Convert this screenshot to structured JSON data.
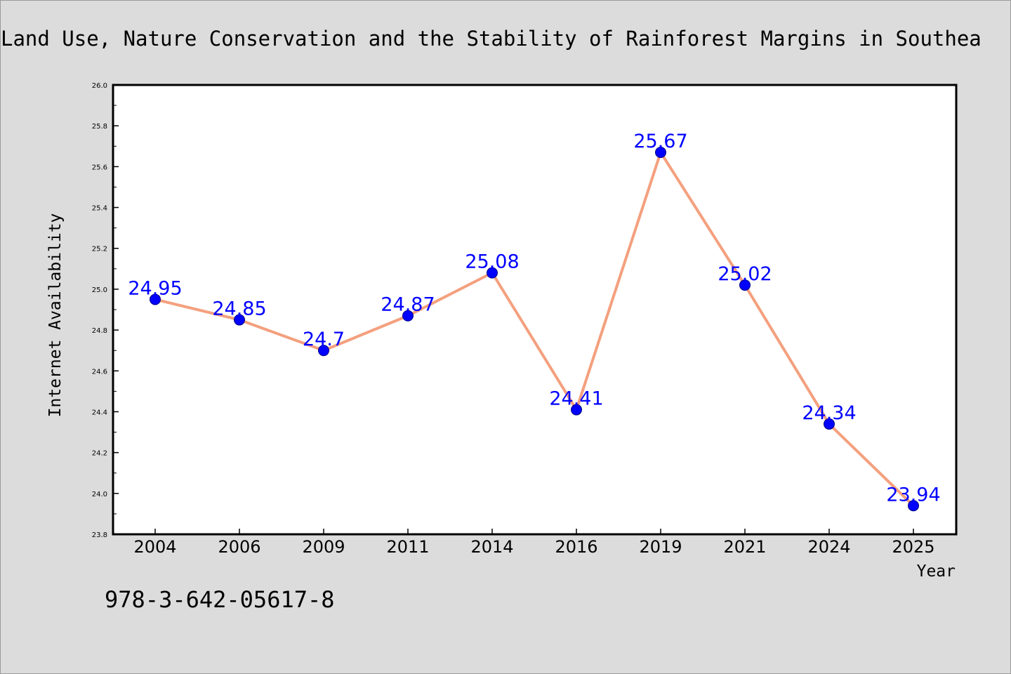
{
  "colors": {
    "background": "#dcdcdc",
    "plot_background": "#ffffff",
    "line": "#f4a07e",
    "marker": "#0000ff",
    "marker_edge": "#000080",
    "data_label": "#0000ff"
  },
  "isbn": "978-3-642-05617-8",
  "chart_data": {
    "type": "line",
    "title": "Land Use, Nature Conservation and the Stability of Rainforest Margins in Southea",
    "xlabel": "Year",
    "ylabel": "Internet Availability",
    "categories": [
      "2004",
      "2006",
      "2009",
      "2011",
      "2014",
      "2016",
      "2019",
      "2021",
      "2024",
      "2025"
    ],
    "series": [
      {
        "values": [
          24.95,
          24.85,
          24.7,
          24.87,
          25.08,
          24.41,
          25.67,
          25.02,
          24.34,
          23.94
        ]
      }
    ],
    "data_labels": [
      "24.95",
      "24.85",
      "24.7",
      "24.87",
      "25.08",
      "24.41",
      "25.67",
      "25.02",
      "24.34",
      "23.94"
    ],
    "ylim": [
      23.8,
      26.0
    ],
    "yticks": [
      "23.8",
      "24.0",
      "24.2",
      "24.4",
      "24.6",
      "24.8",
      "25.0",
      "25.2",
      "25.4",
      "25.6",
      "25.8",
      "26.0"
    ],
    "grid": false,
    "legend": "none"
  }
}
